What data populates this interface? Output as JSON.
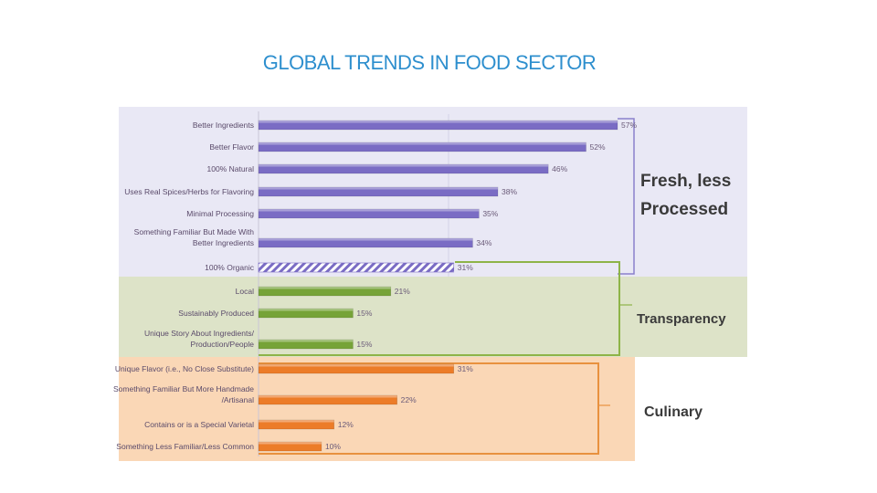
{
  "title": "GLOBAL TRENDS IN FOOD SECTOR",
  "chart_data": {
    "type": "bar",
    "orientation": "horizontal",
    "unit": "%",
    "categories": [
      [
        "Better Ingredients"
      ],
      [
        "Better Flavor"
      ],
      [
        "100% Natural"
      ],
      [
        "Uses Real Spices/Herbs for Flavoring"
      ],
      [
        "Minimal Processing"
      ],
      [
        "Something Familiar But Made With",
        "Better Ingredients"
      ],
      [
        "100% Organic"
      ],
      [
        "Local"
      ],
      [
        "Sustainably Produced"
      ],
      [
        "Unique Story About Ingredients/",
        "Production/People"
      ],
      [
        "Unique Flavor (i.e., No Close Substitute)"
      ],
      [
        "Something Familiar But More Handmade",
        "/Artisanal"
      ],
      [
        "Contains or is a Special Varietal"
      ],
      [
        "Something Less Familiar/Less Common"
      ]
    ],
    "values": [
      57,
      52,
      46,
      38,
      35,
      34,
      31,
      21,
      15,
      15,
      31,
      22,
      12,
      10
    ],
    "value_labels": [
      "57%",
      "52%",
      "46%",
      "38%",
      "35%",
      "34%",
      "31%",
      "21%",
      "15%",
      "15%",
      "31%",
      "22%",
      "12%",
      "10%"
    ],
    "groups": [
      {
        "name": "Fresh, less Processed",
        "lines": [
          "Fresh, less",
          "Processed"
        ],
        "color": "#7a6cc4",
        "hatched_index": 6,
        "indices": [
          0,
          1,
          2,
          3,
          4,
          5,
          6
        ]
      },
      {
        "name": "Transparency",
        "lines": [
          "Transparency"
        ],
        "color": "#76a338",
        "indices": [
          6,
          7,
          8,
          9
        ]
      },
      {
        "name": "Culinary",
        "lines": [
          "Culinary"
        ],
        "color": "#ec7c28",
        "indices": [
          10,
          11,
          12,
          13
        ]
      }
    ],
    "background_colors": {
      "fresh": "#e9e8f5",
      "transparency": "#dde3c8",
      "culinary": "#fad7b6"
    },
    "xlim": [
      0,
      60
    ]
  }
}
